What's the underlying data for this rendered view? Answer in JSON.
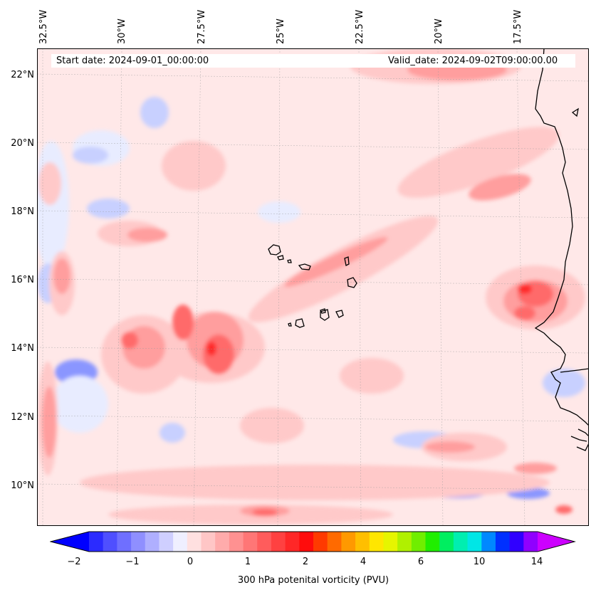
{
  "map": {
    "lon_labels": [
      "32.5°W",
      "30°W",
      "27.5°W",
      "25°W",
      "22.5°W",
      "20°W",
      "17.5°W"
    ],
    "lat_labels": [
      "22°N",
      "20°N",
      "18°N",
      "16°N",
      "14°N",
      "12°N",
      "10°N"
    ],
    "start_date": "Start date: 2024-09-01_00:00:00",
    "valid_date": "Valid_date: 2024-09-02T09:00:00.00",
    "colors": {
      "background": "#ffe8e8",
      "neg_light": "#e8ecff",
      "neg_mid": "#c8d0ff",
      "neg_strong": "#8a96ff",
      "pos_light": "#ffc9c9",
      "pos_mid": "#ff9e9e",
      "pos_strong": "#ff6a6a",
      "pos_peak": "#ff2a2a",
      "coast": "#000000"
    }
  },
  "colorbar": {
    "tick_labels": [
      "−2",
      "−1",
      "0",
      "1",
      "2",
      "4",
      "6",
      "10",
      "14"
    ],
    "title": "300 hPa potenital vorticity (PVU)",
    "colors": [
      "#0000ff",
      "#2b2bff",
      "#4f4fff",
      "#6f6fff",
      "#8f8fff",
      "#afafff",
      "#cfcfff",
      "#efefff",
      "#ffe0e0",
      "#ffc6c6",
      "#ffabab",
      "#ff9191",
      "#ff7676",
      "#ff5c5c",
      "#ff4141",
      "#ff2727",
      "#ff0c0c",
      "#ff3a00",
      "#ff6a00",
      "#ff9900",
      "#ffbf00",
      "#ffe600",
      "#e6f500",
      "#b0f000",
      "#70ee00",
      "#20ee00",
      "#00ee60",
      "#00eeb0",
      "#00e6e6",
      "#0088ff",
      "#0030ff",
      "#3000ff",
      "#9000ff",
      "#cc00ff"
    ]
  }
}
